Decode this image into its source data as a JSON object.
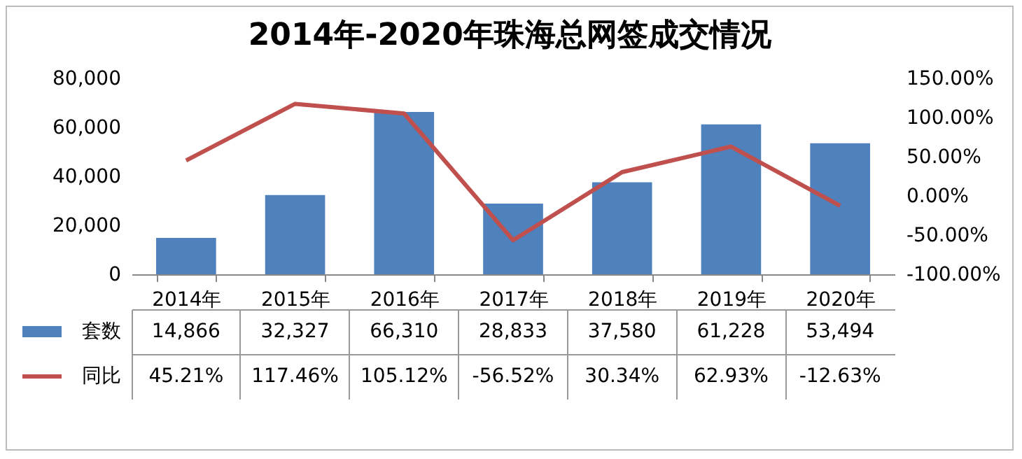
{
  "chart_data": {
    "type": "bar",
    "title": "2014年-2020年珠海总网签成交情况",
    "categories": [
      "2014年",
      "2015年",
      "2016年",
      "2017年",
      "2018年",
      "2019年",
      "2020年"
    ],
    "series": [
      {
        "name": "套数",
        "color": "#4f81bd",
        "values": [
          14866,
          32327,
          66310,
          28833,
          37580,
          61228,
          53494
        ],
        "value_labels": [
          "14,866",
          "32,327",
          "66,310",
          "28,833",
          "37,580",
          "61,228",
          "53,494"
        ]
      },
      {
        "name": "同比",
        "type": "line",
        "axis": "y2",
        "color": "#c0504d",
        "values": [
          45.21,
          117.46,
          105.12,
          -56.52,
          30.34,
          62.93,
          -12.63
        ],
        "value_labels": [
          "45.21%",
          "117.46%",
          "105.12%",
          "-56.52%",
          "30.34%",
          "62.93%",
          "-12.63%"
        ]
      }
    ],
    "ylim": [
      0,
      80000
    ],
    "yticks": [
      0,
      {
        "value": 20000,
        "label": "20,000"
      },
      {
        "value": 40000,
        "label": "40,000"
      },
      {
        "value": 60000,
        "label": "60,000"
      },
      {
        "value": 80000,
        "label": "80,000"
      }
    ],
    "y2lim": [
      -100,
      150
    ],
    "y2ticks": [
      {
        "value": -100,
        "label": "-100.00%"
      },
      {
        "value": -50,
        "label": "-50.00%"
      },
      {
        "value": 0,
        "label": "0.00%"
      },
      {
        "value": 50,
        "label": "50.00%"
      },
      {
        "value": 100,
        "label": "100.00%"
      },
      {
        "value": 150,
        "label": "150.00%"
      }
    ],
    "legend": "bottom",
    "marker": "none",
    "line_style": "solid"
  }
}
